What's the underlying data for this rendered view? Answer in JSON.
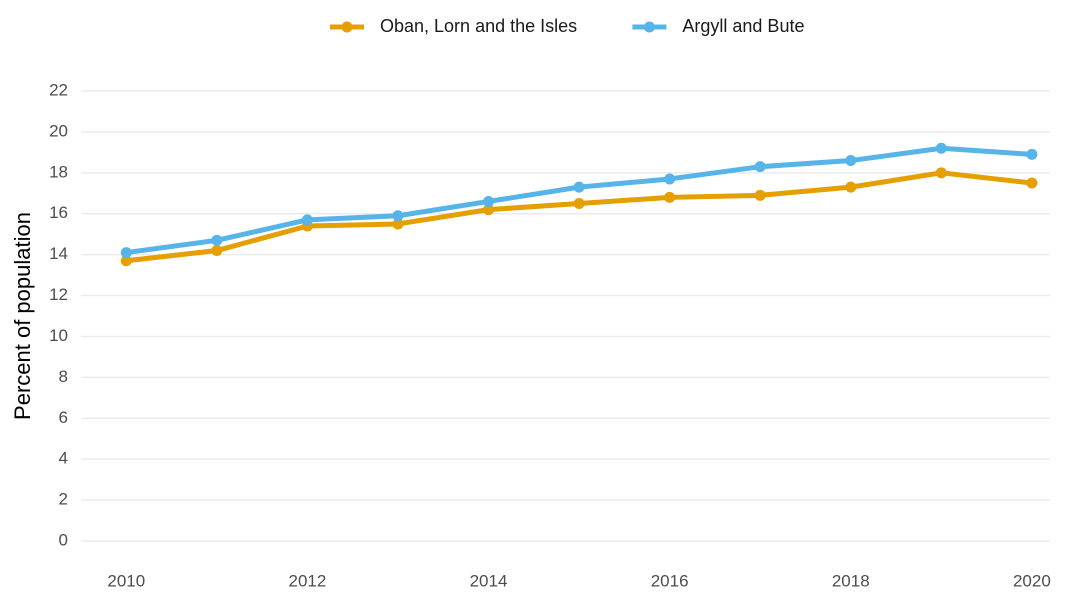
{
  "chart_data": {
    "type": "line",
    "y_label": "Percent of population",
    "x": [
      2010,
      2011,
      2012,
      2013,
      2014,
      2015,
      2016,
      2017,
      2018,
      2019,
      2020
    ],
    "series": [
      {
        "name": "Oban, Lorn and the Isles",
        "color": "#e69f00",
        "values": [
          13.7,
          14.2,
          15.4,
          15.5,
          16.2,
          16.5,
          16.8,
          16.9,
          17.3,
          18.0,
          17.5
        ]
      },
      {
        "name": "Argyll and Bute",
        "color": "#56b4e9",
        "values": [
          14.1,
          14.7,
          15.7,
          15.9,
          16.6,
          17.3,
          17.7,
          18.3,
          18.6,
          19.2,
          18.9
        ]
      }
    ],
    "xlim": [
      2009.5,
      2020.2
    ],
    "xticks": [
      2010,
      2012,
      2014,
      2016,
      2018,
      2020
    ],
    "ylim": [
      0,
      22
    ],
    "yticks": [
      0,
      2,
      4,
      6,
      8,
      10,
      12,
      14,
      16,
      18,
      20,
      22
    ],
    "grid": true,
    "legend": "top"
  }
}
